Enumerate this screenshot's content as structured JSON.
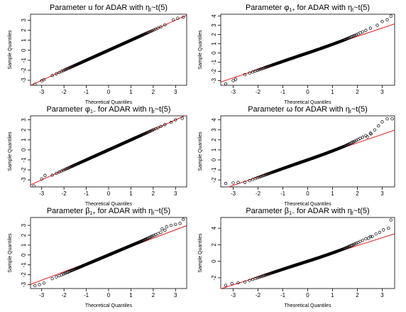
{
  "chart_data": [
    {
      "type": "scatter",
      "title": [
        "Parameter u for ADAR  with η",
        "t",
        "~t(5)"
      ],
      "xlabel": "Theoretical Quantiles",
      "ylabel": "Sample Quantiles",
      "xticks": [
        -3,
        -2,
        -1,
        0,
        1,
        2,
        3
      ],
      "yticks": [
        -3,
        -2,
        -1,
        0,
        1,
        2,
        3
      ],
      "xlim": [
        -3.5,
        3.5
      ],
      "ylim": [
        -3.5,
        3.6
      ],
      "reference_line": {
        "intercept": 0.0,
        "slope": 1.0,
        "color": "#e41a1c"
      },
      "tail_points": [
        [
          -3.3,
          -3.4
        ],
        [
          -3.0,
          -3.05
        ],
        [
          -2.9,
          -2.95
        ],
        [
          2.9,
          3.05
        ],
        [
          3.1,
          3.2
        ],
        [
          3.35,
          3.3
        ]
      ],
      "body_shape": {
        "intercept": 0.0,
        "slope": 1.0,
        "curvature": 0.0,
        "upper_extra": 0.0,
        "lower_extra": 0.0
      }
    },
    {
      "type": "scatter",
      "title": [
        "Parameter φ",
        "1+",
        "  for ADAR with η",
        "t",
        "~t(5)"
      ],
      "xlabel": "Theoretical Quantiles",
      "ylabel": "Sample Quantiles",
      "xticks": [
        -3,
        -2,
        -1,
        0,
        1,
        2,
        3
      ],
      "yticks": [
        -3,
        -2,
        -1,
        0,
        1,
        2,
        3,
        4
      ],
      "xlim": [
        -3.5,
        3.5
      ],
      "ylim": [
        -3.5,
        4.2
      ],
      "reference_line": {
        "intercept": 0.0,
        "slope": 0.9,
        "color": "#e41a1c"
      },
      "tail_points": [
        [
          -3.3,
          -3.35
        ],
        [
          -3.0,
          -3.0
        ],
        [
          -2.9,
          -2.85
        ],
        [
          2.8,
          3.0
        ],
        [
          3.0,
          3.4
        ],
        [
          3.2,
          3.6
        ],
        [
          3.35,
          4.0
        ]
      ],
      "body_shape": {
        "intercept": 0.0,
        "slope": 0.9,
        "curvature": 0.04,
        "upper_extra": 0.15,
        "lower_extra": 0.0
      }
    },
    {
      "type": "scatter",
      "title": [
        "Parameter φ",
        "1−",
        " for ADAR  with η",
        "t",
        "~t(5)"
      ],
      "xlabel": "Theoretical Quantiles",
      "ylabel": "Sample Quantiles",
      "xticks": [
        -3,
        -2,
        -1,
        0,
        1,
        2,
        3
      ],
      "yticks": [
        -3,
        -2,
        -1,
        0,
        1,
        2,
        3
      ],
      "xlim": [
        -3.5,
        3.5
      ],
      "ylim": [
        -3.7,
        3.4
      ],
      "reference_line": {
        "intercept": 0.0,
        "slope": 1.0,
        "color": "#e41a1c"
      },
      "tail_points": [
        [
          -3.35,
          -3.6
        ],
        [
          -3.0,
          -2.9
        ],
        [
          -2.85,
          -2.55
        ],
        [
          2.8,
          2.75
        ],
        [
          3.0,
          3.0
        ],
        [
          3.3,
          3.15
        ]
      ],
      "body_shape": {
        "intercept": 0.0,
        "slope": 1.0,
        "curvature": 0.0,
        "upper_extra": 0.0,
        "lower_extra": 0.0
      }
    },
    {
      "type": "scatter",
      "title": [
        "Parameter ω for ADAR  with η",
        "t",
        "~t(5)"
      ],
      "xlabel": "Theoretical Quantiles",
      "ylabel": "Sample Quantiles",
      "xticks": [
        -3,
        -2,
        -1,
        0,
        1,
        2,
        3
      ],
      "yticks": [
        -2,
        -1,
        0,
        1,
        2,
        3,
        4
      ],
      "xlim": [
        -3.5,
        3.5
      ],
      "ylim": [
        -2.7,
        4.4
      ],
      "reference_line": {
        "intercept": 0.0,
        "slope": 0.85,
        "color": "#e41a1c"
      },
      "tail_points": [
        [
          -3.3,
          -2.35
        ],
        [
          -3.0,
          -2.3
        ],
        [
          -2.8,
          -2.25
        ],
        [
          2.4,
          2.3
        ],
        [
          2.55,
          2.6
        ],
        [
          2.7,
          3.0
        ],
        [
          2.85,
          3.4
        ],
        [
          3.0,
          3.8
        ],
        [
          3.2,
          4.1
        ],
        [
          3.4,
          4.1
        ]
      ],
      "body_shape": {
        "intercept": 0.0,
        "slope": 0.85,
        "curvature": 0.05,
        "upper_extra": 0.2,
        "lower_extra": 0.0
      }
    },
    {
      "type": "scatter",
      "title": [
        "Parameter β",
        "1+",
        " for ADAR  with η",
        "t",
        "~t(5)"
      ],
      "xlabel": "Theoretical Quantiles",
      "ylabel": "Sample Quantiles",
      "xticks": [
        -3,
        -2,
        -1,
        0,
        1,
        2,
        3
      ],
      "yticks": [
        -3,
        -2,
        -1,
        0,
        1,
        2,
        3
      ],
      "xlim": [
        -3.5,
        3.5
      ],
      "ylim": [
        -3.4,
        3.8
      ],
      "reference_line": {
        "intercept": 0.0,
        "slope": 0.85,
        "color": "#e41a1c"
      },
      "tail_points": [
        [
          -3.3,
          -3.1
        ],
        [
          -3.1,
          -3.0
        ],
        [
          -2.9,
          -2.85
        ],
        [
          2.4,
          2.65
        ],
        [
          2.6,
          2.85
        ],
        [
          2.8,
          3.0
        ],
        [
          3.0,
          3.1
        ],
        [
          3.2,
          3.2
        ],
        [
          3.35,
          3.6
        ]
      ],
      "body_shape": {
        "intercept": 0.0,
        "slope": 0.95,
        "curvature": 0.0,
        "upper_extra": 0.1,
        "lower_extra": 0.0
      }
    },
    {
      "type": "scatter",
      "title": [
        "Parameter β",
        "1−",
        " for ADAR  with η",
        "t",
        "~t(5)"
      ],
      "xlabel": "Theoretical Quantiles",
      "ylabel": "Sample Quantiles",
      "xticks": [
        -3,
        -2,
        -1,
        0,
        1,
        2,
        3
      ],
      "yticks": [
        -2,
        0,
        2,
        4
      ],
      "xlim": [
        -3.5,
        3.5
      ],
      "ylim": [
        -3.3,
        5.3
      ],
      "reference_line": {
        "intercept": 0.0,
        "slope": 0.95,
        "color": "#e41a1c"
      },
      "tail_points": [
        [
          -3.3,
          -2.9
        ],
        [
          -3.05,
          -2.7
        ],
        [
          -2.8,
          -2.6
        ],
        [
          2.45,
          2.8
        ],
        [
          2.6,
          3.0
        ],
        [
          2.75,
          3.3
        ],
        [
          2.9,
          3.5
        ],
        [
          3.05,
          3.8
        ],
        [
          3.25,
          4.0
        ],
        [
          3.35,
          5.0
        ]
      ],
      "body_shape": {
        "intercept": 0.0,
        "slope": 0.95,
        "curvature": 0.06,
        "upper_extra": 0.2,
        "lower_extra": 0.0
      }
    }
  ]
}
